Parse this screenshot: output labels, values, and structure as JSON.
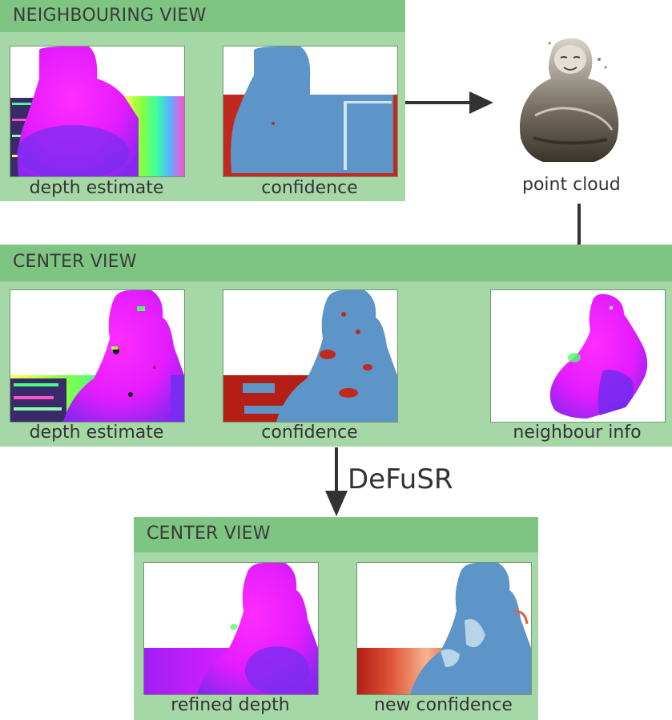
{
  "neighbouring": {
    "title": "NEIGHBOURING VIEW",
    "depth_caption": "depth estimate",
    "confidence_caption": "confidence"
  },
  "point_cloud": {
    "caption": "point cloud"
  },
  "center": {
    "title": "CENTER VIEW",
    "depth_caption": "depth estimate",
    "confidence_caption": "confidence",
    "neighbour_caption": "neighbour info"
  },
  "method": {
    "label": "DeFuSR"
  },
  "result": {
    "title": "CENTER VIEW",
    "depth_caption": "refined depth",
    "confidence_caption": "new confidence"
  },
  "colors": {
    "panel": "#a5d7a7",
    "panel_header": "#7ec482",
    "arrow": "#333333",
    "depth_magenta": "#ff21ff",
    "depth_violet": "#7a2cf2",
    "confidence_blue": "#5d95c9",
    "confidence_red": "#c0291e"
  }
}
